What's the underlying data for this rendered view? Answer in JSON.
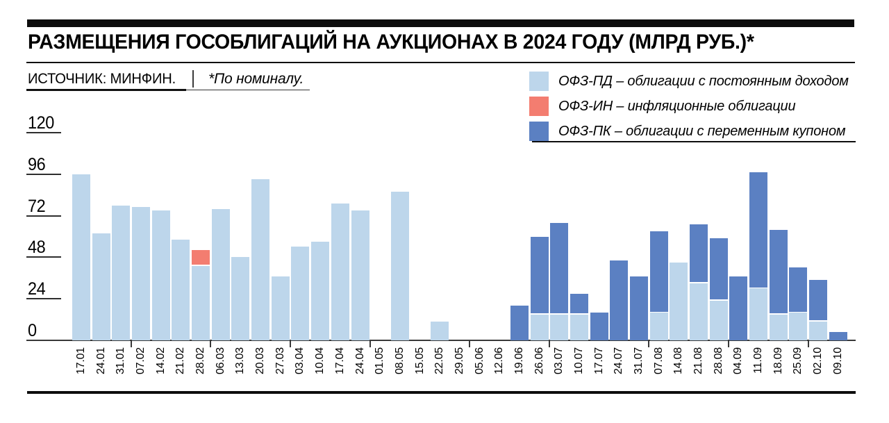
{
  "header": {
    "title": "РАЗМЕЩЕНИЯ ГОСОБЛИГАЦИЙ НА АУКЦИОНАХ В 2024 ГОДУ (МЛРД РУБ.)*",
    "source": "ИСТОЧНИК: МИНФИН.",
    "note": "*По номиналу."
  },
  "legend": {
    "items": [
      {
        "name": "ОФЗ-ПД",
        "color": "#BDD6EB",
        "label": "ОФЗ-ПД – облигации с постоянным доходом"
      },
      {
        "name": "ОФЗ-ИН",
        "color": "#F37D70",
        "label": "ОФЗ-ИН – инфляционные облигации"
      },
      {
        "name": "ОФЗ-ПК",
        "color": "#5B80C2",
        "label": "ОФЗ-ПК – облигации с переменным купоном"
      }
    ]
  },
  "chart_data": {
    "type": "bar",
    "stacked": true,
    "title": "РАЗМЕЩЕНИЯ ГОСОБЛИГАЦИЙ НА АУКЦИОНАХ В 2024 ГОДУ (МЛРД РУБ.)*",
    "xlabel": "",
    "ylabel": "млрд руб.",
    "ylim": [
      0,
      120
    ],
    "yticks": [
      0,
      24,
      48,
      72,
      96,
      120
    ],
    "grid": false,
    "legend_position": "top-right",
    "categories": [
      "17.01",
      "24.01",
      "31.01",
      "07.02",
      "14.02",
      "21.02",
      "28.02",
      "06.03",
      "13.03",
      "20.03",
      "27.03",
      "03.04",
      "10.04",
      "17.04",
      "24.04",
      "01.05",
      "08.05",
      "15.05",
      "22.05",
      "29.05",
      "05.06",
      "12.06",
      "19.06",
      "26.06",
      "03.07",
      "10.07",
      "17.07",
      "24.07",
      "31.07",
      "07.08",
      "14.08",
      "21.08",
      "28.08",
      "04.09",
      "11.09",
      "18.09",
      "25.09",
      "02.10",
      "09.10"
    ],
    "series": [
      {
        "name": "ОФЗ-ПД",
        "color": "#BDD6EB",
        "values": [
          96,
          62,
          78,
          77,
          75,
          58,
          43,
          76,
          48,
          93,
          37,
          54,
          57,
          79,
          75,
          0,
          86,
          0,
          11,
          0,
          0,
          0,
          0,
          15,
          15,
          15,
          0,
          0,
          0,
          16,
          45,
          33,
          23,
          0,
          30,
          15,
          16,
          11,
          0
        ]
      },
      {
        "name": "ОФЗ-ИН",
        "color": "#F37D70",
        "values": [
          0,
          0,
          0,
          0,
          0,
          0,
          9,
          0,
          0,
          0,
          0,
          0,
          0,
          0,
          0,
          0,
          0,
          0,
          0,
          0,
          0,
          0,
          0,
          0,
          0,
          0,
          0,
          0,
          0,
          0,
          0,
          0,
          0,
          0,
          0,
          0,
          0,
          0,
          0
        ]
      },
      {
        "name": "ОФЗ-ПК",
        "color": "#5B80C2",
        "values": [
          0,
          0,
          0,
          0,
          0,
          0,
          0,
          0,
          0,
          0,
          0,
          0,
          0,
          0,
          0,
          0,
          0,
          0,
          0,
          0,
          0,
          0,
          20,
          45,
          53,
          12,
          16,
          46,
          37,
          47,
          0,
          34,
          36,
          37,
          67,
          49,
          26,
          24,
          5
        ]
      }
    ]
  }
}
